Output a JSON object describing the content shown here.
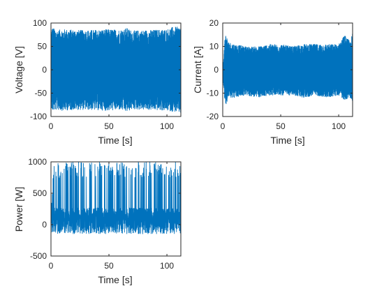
{
  "chart_data": [
    {
      "type": "line",
      "xlabel": "Time [s]",
      "ylabel": "Voltage [V]",
      "xlim": [
        0,
        112
      ],
      "ylim": [
        -100,
        100
      ],
      "xticks": [
        0,
        50,
        100
      ],
      "xtick_labels": [
        "0",
        "50",
        "100"
      ],
      "yticks": [
        -100,
        -50,
        0,
        50,
        100
      ],
      "ytick_labels": [
        "-100",
        "-50",
        "0",
        "50",
        "100"
      ],
      "grid": false,
      "series": [
        {
          "color": "#0072bd",
          "x": [
            0,
            1,
            2,
            3,
            5,
            10,
            20,
            30,
            40,
            50,
            60,
            65,
            70,
            80,
            90,
            100,
            105,
            110,
            112
          ],
          "y_upper": [
            80,
            92,
            90,
            88,
            85,
            87,
            86,
            85,
            86,
            87,
            86,
            90,
            84,
            85,
            86,
            87,
            92,
            92,
            94
          ],
          "y_lower": [
            -78,
            -90,
            -88,
            -88,
            -86,
            -88,
            -86,
            -86,
            -87,
            -88,
            -86,
            -91,
            -85,
            -86,
            -87,
            -88,
            -90,
            -92,
            -94
          ]
        }
      ]
    },
    {
      "type": "line",
      "xlabel": "Time [s]",
      "ylabel": "Current [A]",
      "xlim": [
        0,
        112
      ],
      "ylim": [
        -20,
        20
      ],
      "xticks": [
        0,
        50,
        100
      ],
      "xtick_labels": [
        "0",
        "50",
        "100"
      ],
      "yticks": [
        -20,
        -10,
        0,
        10,
        20
      ],
      "ytick_labels": [
        "-20",
        "-10",
        "0",
        "10",
        "20"
      ],
      "grid": false,
      "series": [
        {
          "color": "#0072bd",
          "x": [
            0,
            1,
            2,
            5,
            10,
            20,
            30,
            40,
            50,
            60,
            70,
            80,
            90,
            100,
            105,
            110,
            112
          ],
          "y_upper": [
            3,
            6,
            16,
            12,
            11,
            10,
            10,
            11,
            11,
            10,
            11,
            11,
            11,
            11,
            15,
            12,
            16
          ],
          "y_lower": [
            -3,
            -8,
            -16,
            -12,
            -12,
            -11,
            -12,
            -11,
            -11,
            -11,
            -12,
            -11,
            -12,
            -11,
            -13,
            -12,
            -15
          ]
        }
      ]
    },
    {
      "type": "line",
      "xlabel": "Time [s]",
      "ylabel": "Power [W]",
      "xlim": [
        0,
        112
      ],
      "ylim": [
        -500,
        1000
      ],
      "xticks": [
        0,
        50,
        100
      ],
      "xtick_labels": [
        "0",
        "50",
        "100"
      ],
      "yticks": [
        -500,
        0,
        500,
        1000
      ],
      "ytick_labels": [
        "-500",
        "0",
        "500",
        "1000"
      ],
      "grid": false,
      "series": [
        {
          "color": "#0072bd",
          "x": [
            0,
            1,
            2,
            5,
            10,
            20,
            30,
            40,
            50,
            60,
            70,
            80,
            90,
            100,
            105,
            110,
            112
          ],
          "y_upper": [
            150,
            600,
            1000,
            1000,
            1000,
            1000,
            1000,
            1000,
            1000,
            1000,
            1000,
            1000,
            1000,
            1000,
            1000,
            1000,
            1000
          ],
          "y_lower": [
            -20,
            -150,
            -250,
            -220,
            -200,
            -200,
            -210,
            -200,
            -200,
            -200,
            -200,
            -200,
            -210,
            -220,
            -250,
            -280,
            -300
          ]
        }
      ]
    }
  ]
}
